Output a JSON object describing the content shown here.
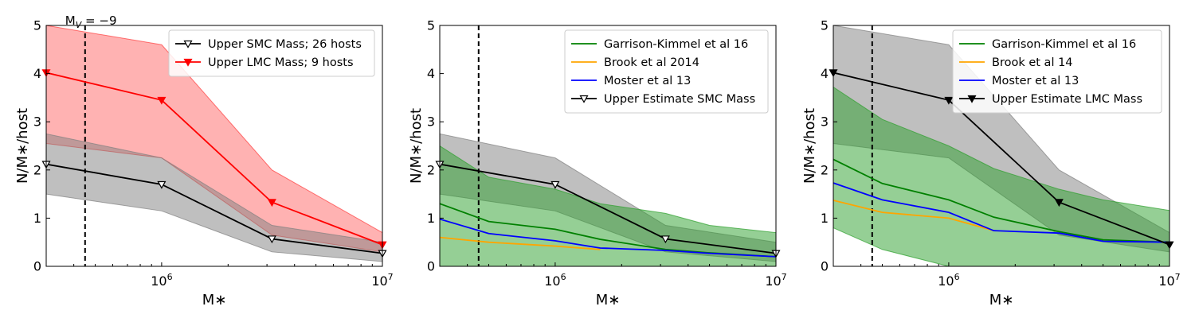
{
  "chart_data": [
    {
      "type": "line",
      "xscale": "log",
      "xlim": [
        300000,
        10000000
      ],
      "ylim": [
        0,
        5
      ],
      "xlabel": "M∗",
      "ylabel": "N/M∗/host",
      "xticklabels": [
        "10^6",
        "10^7"
      ],
      "yticks": [
        0,
        1,
        2,
        3,
        4,
        5
      ],
      "vline": 450000,
      "annotation": "M_V = −9",
      "legend_position": "upper right",
      "bands": [
        {
          "color": "#ff0000",
          "opacity": 0.3,
          "x": [
            300000,
            1000000,
            3160000,
            10000000
          ],
          "lower": [
            2.55,
            2.25,
            0.65,
            0.3
          ],
          "upper": [
            5.0,
            4.6,
            2.0,
            0.7
          ]
        },
        {
          "color": "#808080",
          "opacity": 0.5,
          "x": [
            300000,
            1000000,
            3160000,
            10000000
          ],
          "lower": [
            1.5,
            1.15,
            0.3,
            0.1
          ],
          "upper": [
            2.75,
            2.25,
            0.85,
            0.5
          ]
        }
      ],
      "series": [
        {
          "name": "Upper SMC Mass; 26 hosts",
          "color": "#000000",
          "marker": "triangle-down-open",
          "x": [
            300000,
            1000000,
            3160000,
            10000000
          ],
          "values": [
            2.12,
            1.7,
            0.57,
            0.27
          ]
        },
        {
          "name": "Upper LMC Mass; 9 hosts",
          "color": "#ff0000",
          "marker": "triangle-down-filled",
          "x": [
            300000,
            1000000,
            3160000,
            10000000
          ],
          "values": [
            4.02,
            3.45,
            1.33,
            0.45
          ]
        }
      ]
    },
    {
      "type": "line",
      "xscale": "log",
      "xlim": [
        300000,
        10000000
      ],
      "ylim": [
        0,
        5
      ],
      "xlabel": "M∗",
      "ylabel": "N/M∗/host",
      "xticklabels": [
        "10^6",
        "10^7"
      ],
      "yticks": [
        0,
        1,
        2,
        3,
        4,
        5
      ],
      "vline": 450000,
      "legend_position": "upper right",
      "bands": [
        {
          "color": "#808080",
          "opacity": 0.5,
          "x": [
            300000,
            1000000,
            3160000,
            10000000
          ],
          "lower": [
            1.5,
            1.15,
            0.3,
            0.1
          ],
          "upper": [
            2.75,
            2.25,
            0.85,
            0.5
          ]
        },
        {
          "color": "#2ca02c",
          "opacity": 0.5,
          "x": [
            300000,
            500000,
            1000000,
            1600000,
            3160000,
            5000000,
            10000000
          ],
          "lower": [
            0,
            0,
            0,
            0,
            0,
            0,
            0
          ],
          "upper": [
            2.5,
            1.85,
            1.6,
            1.3,
            1.1,
            0.85,
            0.7
          ]
        }
      ],
      "series": [
        {
          "name": "Garrison-Kimmel et al 16",
          "color": "#008000",
          "marker": "none",
          "x": [
            300000,
            500000,
            1000000,
            1600000,
            3160000,
            5000000,
            10000000
          ],
          "values": [
            1.3,
            0.93,
            0.77,
            0.56,
            0.35,
            0.28,
            0.2
          ]
        },
        {
          "name": "Brook et al 2014",
          "color": "#ffa500",
          "marker": "none",
          "x": [
            300000,
            500000,
            1000000,
            1600000
          ],
          "values": [
            0.6,
            0.5,
            0.42,
            0.35
          ]
        },
        {
          "name": "Moster et al 13",
          "color": "#0000ff",
          "marker": "none",
          "x": [
            300000,
            500000,
            1000000,
            1600000,
            3160000,
            5000000,
            10000000
          ],
          "values": [
            0.98,
            0.68,
            0.53,
            0.38,
            0.33,
            0.27,
            0.2
          ]
        },
        {
          "name": "Upper Estimate SMC Mass",
          "color": "#000000",
          "marker": "triangle-down-open",
          "x": [
            300000,
            1000000,
            3160000,
            10000000
          ],
          "values": [
            2.12,
            1.7,
            0.57,
            0.27
          ]
        }
      ]
    },
    {
      "type": "line",
      "xscale": "log",
      "xlim": [
        300000,
        10000000
      ],
      "ylim": [
        0,
        5
      ],
      "xlabel": "M∗",
      "ylabel": "N/M∗/host",
      "xticklabels": [
        "10^6",
        "10^7"
      ],
      "yticks": [
        0,
        1,
        2,
        3,
        4,
        5
      ],
      "vline": 450000,
      "legend_position": "upper right",
      "bands": [
        {
          "color": "#808080",
          "opacity": 0.5,
          "x": [
            300000,
            1000000,
            3160000,
            10000000
          ],
          "lower": [
            2.55,
            2.25,
            0.65,
            0.3
          ],
          "upper": [
            5.0,
            4.6,
            2.0,
            0.7
          ]
        },
        {
          "color": "#2ca02c",
          "opacity": 0.5,
          "x": [
            300000,
            500000,
            1000000,
            1600000,
            3160000,
            5000000,
            10000000
          ],
          "lower": [
            0.8,
            0.35,
            0,
            0,
            0,
            0,
            0
          ],
          "upper": [
            3.72,
            3.05,
            2.5,
            2.03,
            1.6,
            1.38,
            1.16
          ]
        }
      ],
      "series": [
        {
          "name": "Garrison-Kimmel et al 16",
          "color": "#008000",
          "marker": "none",
          "x": [
            300000,
            500000,
            1000000,
            1600000,
            3160000,
            5000000,
            10000000
          ],
          "values": [
            2.22,
            1.72,
            1.38,
            1.02,
            0.72,
            0.55,
            0.5
          ]
        },
        {
          "name": "Brook et al 14",
          "color": "#ffa500",
          "marker": "none",
          "x": [
            300000,
            500000,
            1000000,
            1600000
          ],
          "values": [
            1.37,
            1.12,
            1.0,
            0.74
          ]
        },
        {
          "name": "Moster et al 13",
          "color": "#0000ff",
          "marker": "none",
          "x": [
            300000,
            500000,
            1000000,
            1600000,
            3160000,
            5000000,
            10000000
          ],
          "values": [
            1.73,
            1.38,
            1.12,
            0.74,
            0.69,
            0.52,
            0.5
          ]
        },
        {
          "name": "Upper Estimate LMC Mass",
          "color": "#000000",
          "marker": "triangle-down-filled",
          "x": [
            300000,
            1000000,
            3160000,
            10000000
          ],
          "values": [
            4.02,
            3.45,
            1.33,
            0.45
          ]
        }
      ]
    }
  ]
}
